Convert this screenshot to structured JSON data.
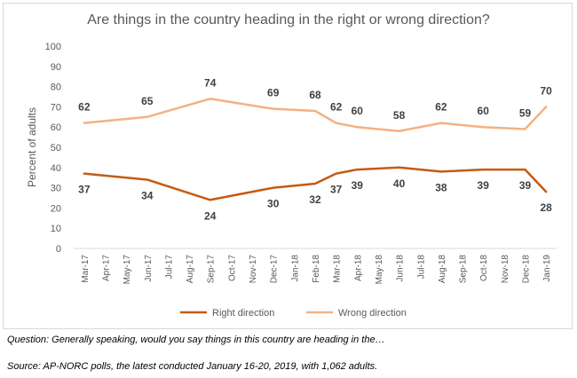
{
  "chart_data": {
    "type": "line",
    "title": "Are things in the country heading in the right or wrong direction?",
    "xlabel": "",
    "ylabel": "Percent of adults",
    "ylim": [
      0,
      100
    ],
    "yticks": [
      0,
      10,
      20,
      30,
      40,
      50,
      60,
      70,
      80,
      90,
      100
    ],
    "grid": false,
    "legend_position": "bottom",
    "categories": [
      "Mar-17",
      "Apr-17",
      "May-17",
      "Jun-17",
      "Jul-17",
      "Aug-17",
      "Sep-17",
      "Oct-17",
      "Nov-17",
      "Dec-17",
      "Jan-18",
      "Feb-18",
      "Mar-18",
      "Apr-18",
      "May-18",
      "Jun-18",
      "Jul-18",
      "Aug-18",
      "Sep-18",
      "Oct-18",
      "Nov-18",
      "Dec-18",
      "Jan-19"
    ],
    "series": [
      {
        "name": "Right direction",
        "color": "#c55a11",
        "x": [
          "Mar-17",
          "Jun-17",
          "Sep-17",
          "Dec-17",
          "Feb-18",
          "Mar-18",
          "Apr-18",
          "Jun-18",
          "Aug-18",
          "Oct-18",
          "Dec-18",
          "Jan-19"
        ],
        "values": [
          37,
          34,
          24,
          30,
          32,
          37,
          39,
          40,
          38,
          39,
          39,
          28
        ]
      },
      {
        "name": "Wrong direction",
        "color": "#f4b183",
        "x": [
          "Mar-17",
          "Jun-17",
          "Sep-17",
          "Dec-17",
          "Feb-18",
          "Mar-18",
          "Apr-18",
          "Jun-18",
          "Aug-18",
          "Oct-18",
          "Dec-18",
          "Jan-19"
        ],
        "values": [
          62,
          65,
          74,
          69,
          68,
          62,
          60,
          58,
          62,
          60,
          59,
          70
        ]
      }
    ]
  },
  "footnotes": {
    "question": "Question: Generally speaking, would you say things in this country are heading in the…",
    "source": "Source: AP-NORC polls, the latest conducted January 16-20, 2019, with 1,062 adults."
  }
}
